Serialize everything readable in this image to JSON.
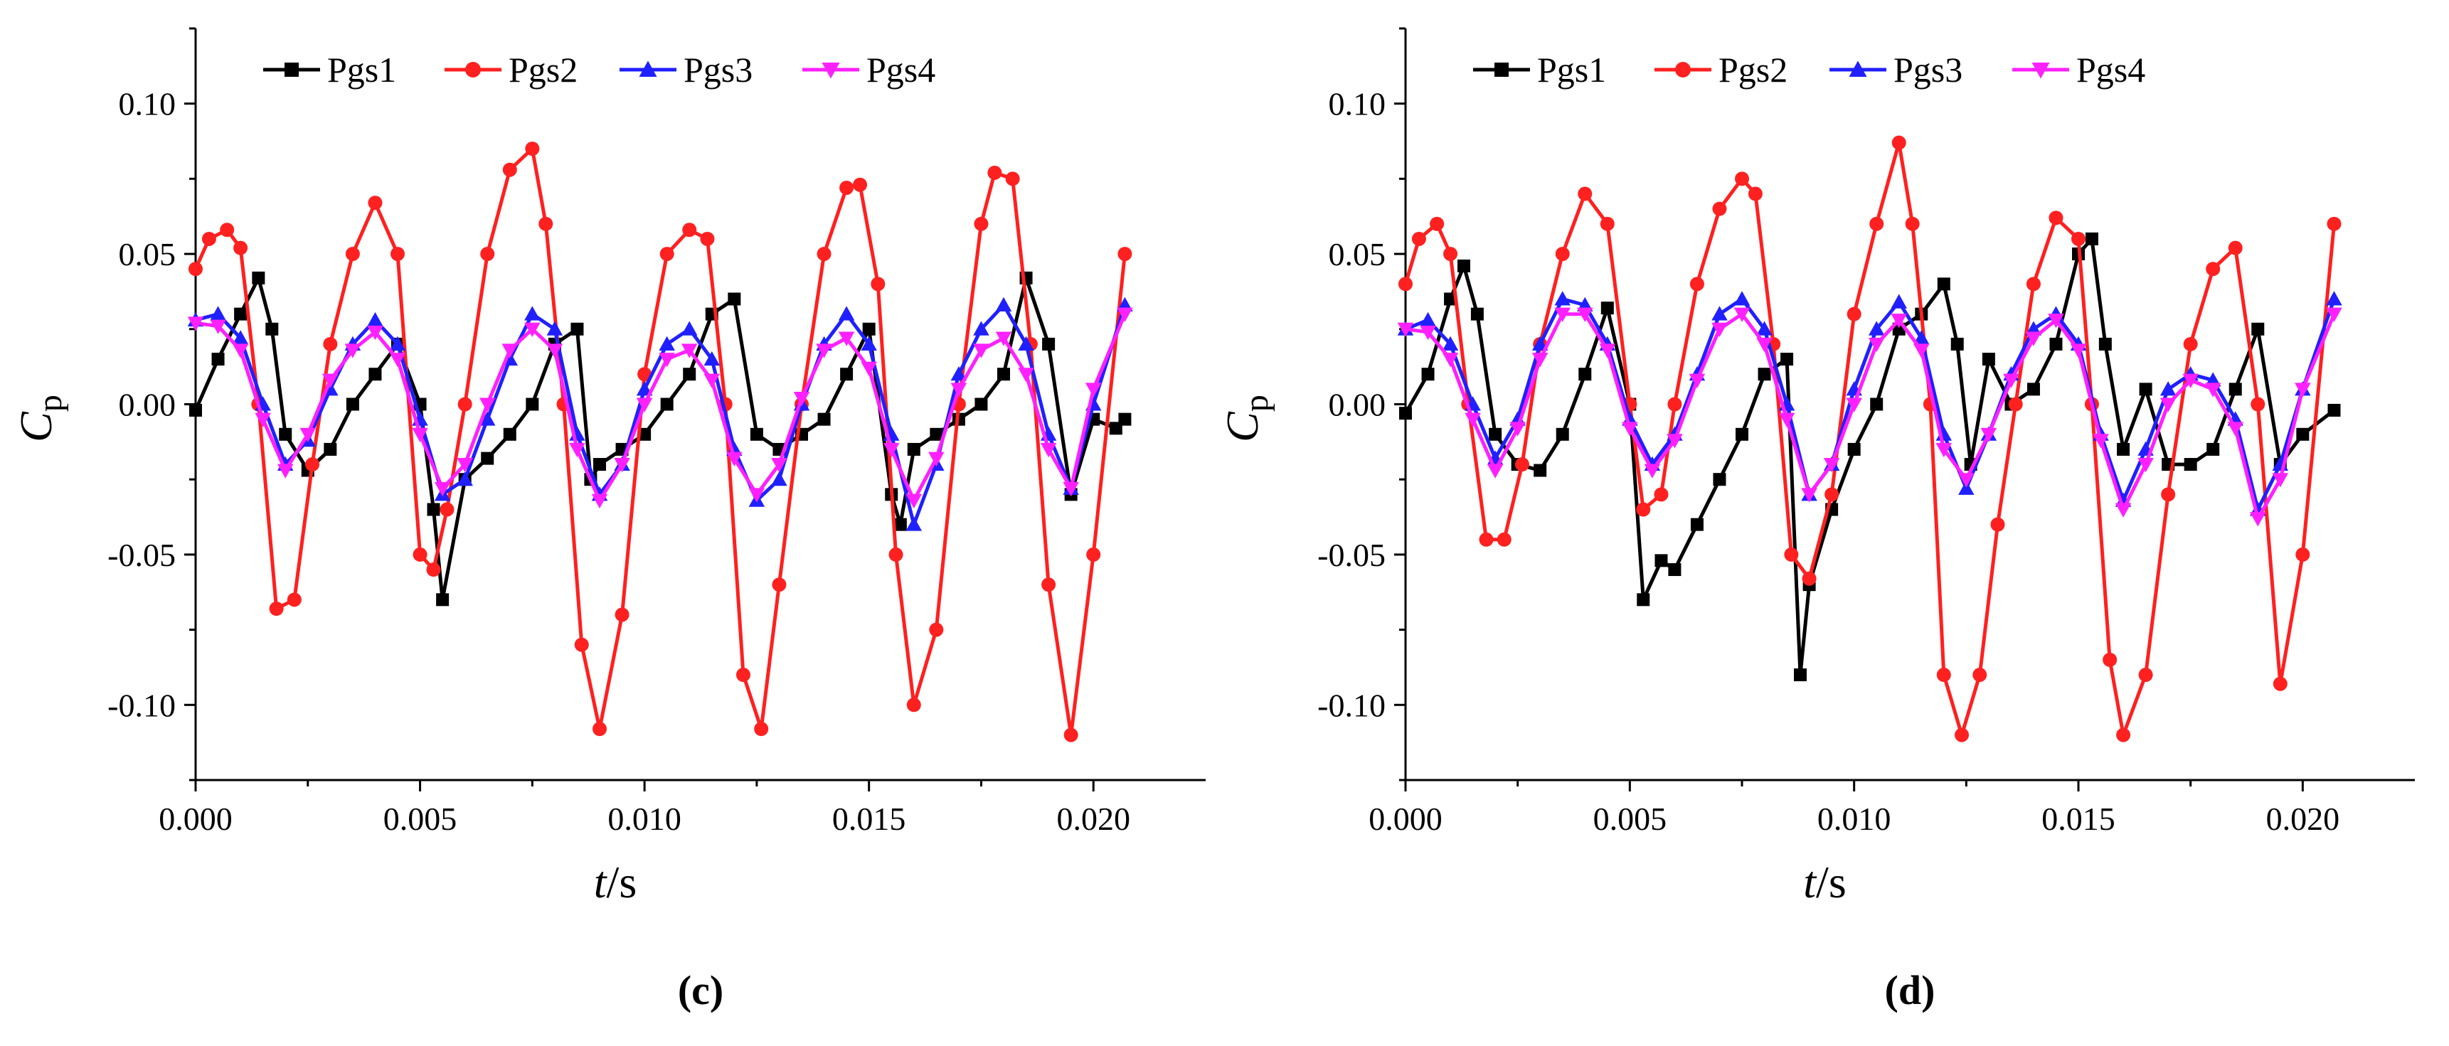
{
  "chart_data": [
    {
      "type": "line",
      "caption": "(c)",
      "xlabel": "t",
      "xlabel_unit": "/s",
      "ylabel": "C",
      "ylabel_sub": "p",
      "xlim": [
        0,
        0.0225
      ],
      "ylim": [
        -0.125,
        0.125
      ],
      "xticks": [
        0.0,
        0.005,
        0.01,
        0.015,
        0.02
      ],
      "xtick_labels": [
        "0.000",
        "0.005",
        "0.010",
        "0.015",
        "0.020"
      ],
      "yticks": [
        -0.1,
        -0.05,
        0.0,
        0.05,
        0.1
      ],
      "ytick_labels": [
        "-0.10",
        "-0.05",
        "0.00",
        "0.05",
        "0.10"
      ],
      "grid": false,
      "legend": "top",
      "series": [
        {
          "name": "Pgs1",
          "color": "#000000",
          "marker": "square",
          "x": [
            0,
            0.0005,
            0.001,
            0.0014,
            0.0017,
            0.002,
            0.0025,
            0.003,
            0.0035,
            0.004,
            0.0045,
            0.005,
            0.0053,
            0.0055,
            0.006,
            0.0065,
            0.007,
            0.0075,
            0.008,
            0.0085,
            0.0088,
            0.009,
            0.0095,
            0.01,
            0.0105,
            0.011,
            0.0115,
            0.012,
            0.0125,
            0.013,
            0.0135,
            0.014,
            0.0145,
            0.015,
            0.0155,
            0.0157,
            0.016,
            0.0165,
            0.017,
            0.0175,
            0.018,
            0.0185,
            0.019,
            0.0195,
            0.02,
            0.0205,
            0.0207
          ],
          "y": [
            -0.002,
            0.015,
            0.03,
            0.042,
            0.025,
            -0.01,
            -0.022,
            -0.015,
            0.0,
            0.01,
            0.02,
            0.0,
            -0.035,
            -0.065,
            -0.025,
            -0.018,
            -0.01,
            0.0,
            0.02,
            0.025,
            -0.025,
            -0.02,
            -0.015,
            -0.01,
            0.0,
            0.01,
            0.03,
            0.035,
            -0.01,
            -0.015,
            -0.01,
            -0.005,
            0.01,
            0.025,
            -0.03,
            -0.04,
            -0.015,
            -0.01,
            -0.005,
            0.0,
            0.01,
            0.042,
            0.02,
            -0.03,
            -0.005,
            -0.008,
            -0.005
          ]
        },
        {
          "name": "Pgs2",
          "color": "#ff2020",
          "marker": "circle",
          "x": [
            0,
            0.0003,
            0.0007,
            0.001,
            0.0014,
            0.0018,
            0.0022,
            0.0026,
            0.003,
            0.0035,
            0.004,
            0.0045,
            0.005,
            0.0053,
            0.0056,
            0.006,
            0.0065,
            0.007,
            0.0075,
            0.0078,
            0.0082,
            0.0086,
            0.009,
            0.0095,
            0.01,
            0.0105,
            0.011,
            0.0114,
            0.0118,
            0.0122,
            0.0126,
            0.013,
            0.0135,
            0.014,
            0.0145,
            0.0148,
            0.0152,
            0.0156,
            0.016,
            0.0165,
            0.017,
            0.0175,
            0.0178,
            0.0182,
            0.0186,
            0.019,
            0.0195,
            0.02,
            0.0207
          ],
          "y": [
            0.045,
            0.055,
            0.058,
            0.052,
            0.0,
            -0.068,
            -0.065,
            -0.02,
            0.02,
            0.05,
            0.067,
            0.05,
            -0.05,
            -0.055,
            -0.035,
            0.0,
            0.05,
            0.078,
            0.085,
            0.06,
            0.0,
            -0.08,
            -0.108,
            -0.07,
            0.01,
            0.05,
            0.058,
            0.055,
            0.0,
            -0.09,
            -0.108,
            -0.06,
            0.0,
            0.05,
            0.072,
            0.073,
            0.04,
            -0.05,
            -0.1,
            -0.075,
            0.0,
            0.06,
            0.077,
            0.075,
            0.02,
            -0.06,
            -0.11,
            -0.05,
            0.05
          ]
        },
        {
          "name": "Pgs3",
          "color": "#2020ff",
          "marker": "triangle-up",
          "x": [
            0,
            0.0005,
            0.001,
            0.0015,
            0.002,
            0.0025,
            0.003,
            0.0035,
            0.004,
            0.0045,
            0.005,
            0.0055,
            0.006,
            0.0065,
            0.007,
            0.0075,
            0.008,
            0.0085,
            0.009,
            0.0095,
            0.01,
            0.0105,
            0.011,
            0.0115,
            0.012,
            0.0125,
            0.013,
            0.0135,
            0.014,
            0.0145,
            0.015,
            0.0155,
            0.016,
            0.0165,
            0.017,
            0.0175,
            0.018,
            0.0185,
            0.019,
            0.0195,
            0.02,
            0.0207
          ],
          "y": [
            0.028,
            0.03,
            0.022,
            0.0,
            -0.02,
            -0.012,
            0.005,
            0.02,
            0.028,
            0.02,
            -0.005,
            -0.03,
            -0.025,
            -0.005,
            0.015,
            0.03,
            0.025,
            -0.01,
            -0.03,
            -0.02,
            0.005,
            0.02,
            0.025,
            0.015,
            -0.015,
            -0.032,
            -0.025,
            0.0,
            0.02,
            0.03,
            0.02,
            -0.01,
            -0.04,
            -0.02,
            0.01,
            0.025,
            0.033,
            0.02,
            -0.01,
            -0.028,
            0.0,
            0.033
          ]
        },
        {
          "name": "Pgs4",
          "color": "#ff20ff",
          "marker": "triangle-down",
          "x": [
            0,
            0.0005,
            0.001,
            0.0015,
            0.002,
            0.0025,
            0.003,
            0.0035,
            0.004,
            0.0045,
            0.005,
            0.0055,
            0.006,
            0.0065,
            0.007,
            0.0075,
            0.008,
            0.0085,
            0.009,
            0.0095,
            0.01,
            0.0105,
            0.011,
            0.0115,
            0.012,
            0.0125,
            0.013,
            0.0135,
            0.014,
            0.0145,
            0.015,
            0.0155,
            0.016,
            0.0165,
            0.017,
            0.0175,
            0.018,
            0.0185,
            0.019,
            0.0195,
            0.02,
            0.0207
          ],
          "y": [
            0.027,
            0.026,
            0.018,
            -0.005,
            -0.022,
            -0.01,
            0.008,
            0.018,
            0.024,
            0.015,
            -0.01,
            -0.028,
            -0.02,
            0.0,
            0.018,
            0.025,
            0.018,
            -0.015,
            -0.032,
            -0.02,
            0.0,
            0.015,
            0.018,
            0.008,
            -0.018,
            -0.03,
            -0.02,
            0.002,
            0.018,
            0.022,
            0.012,
            -0.015,
            -0.032,
            -0.018,
            0.005,
            0.018,
            0.022,
            0.01,
            -0.015,
            -0.028,
            0.005,
            0.03
          ]
        }
      ]
    },
    {
      "type": "line",
      "caption": "(d)",
      "xlabel": "t",
      "xlabel_unit": "/s",
      "ylabel": "C",
      "ylabel_sub": "p",
      "xlim": [
        0,
        0.0225
      ],
      "ylim": [
        -0.125,
        0.125
      ],
      "xticks": [
        0.0,
        0.005,
        0.01,
        0.015,
        0.02
      ],
      "xtick_labels": [
        "0.000",
        "0.005",
        "0.010",
        "0.015",
        "0.020"
      ],
      "yticks": [
        -0.1,
        -0.05,
        0.0,
        0.05,
        0.1
      ],
      "ytick_labels": [
        "-0.10",
        "-0.05",
        "0.00",
        "0.05",
        "0.10"
      ],
      "grid": false,
      "legend": "top",
      "series": [
        {
          "name": "Pgs1",
          "color": "#000000",
          "marker": "square",
          "x": [
            0,
            0.0005,
            0.001,
            0.0013,
            0.0016,
            0.002,
            0.0025,
            0.003,
            0.0035,
            0.004,
            0.0045,
            0.005,
            0.0053,
            0.0057,
            0.006,
            0.0065,
            0.007,
            0.0075,
            0.008,
            0.0085,
            0.0088,
            0.009,
            0.0095,
            0.01,
            0.0105,
            0.011,
            0.0115,
            0.012,
            0.0123,
            0.0126,
            0.013,
            0.0135,
            0.014,
            0.0145,
            0.015,
            0.0153,
            0.0156,
            0.016,
            0.0165,
            0.017,
            0.0175,
            0.018,
            0.0185,
            0.019,
            0.0195,
            0.02,
            0.0207
          ],
          "y": [
            -0.003,
            0.01,
            0.035,
            0.046,
            0.03,
            -0.01,
            -0.02,
            -0.022,
            -0.01,
            0.01,
            0.032,
            0.0,
            -0.065,
            -0.052,
            -0.055,
            -0.04,
            -0.025,
            -0.01,
            0.01,
            0.015,
            -0.09,
            -0.06,
            -0.035,
            -0.015,
            0.0,
            0.025,
            0.03,
            0.04,
            0.02,
            -0.02,
            0.015,
            0.0,
            0.005,
            0.02,
            0.05,
            0.055,
            0.02,
            -0.015,
            0.005,
            -0.02,
            -0.02,
            -0.015,
            0.005,
            0.025,
            -0.02,
            -0.01,
            -0.002
          ]
        },
        {
          "name": "Pgs2",
          "color": "#ff2020",
          "marker": "circle",
          "x": [
            0,
            0.0003,
            0.0007,
            0.001,
            0.0014,
            0.0018,
            0.0022,
            0.0026,
            0.003,
            0.0035,
            0.004,
            0.0045,
            0.005,
            0.0053,
            0.0057,
            0.006,
            0.0065,
            0.007,
            0.0075,
            0.0078,
            0.0082,
            0.0086,
            0.009,
            0.0095,
            0.01,
            0.0105,
            0.011,
            0.0113,
            0.0117,
            0.012,
            0.0124,
            0.0128,
            0.0132,
            0.0136,
            0.014,
            0.0145,
            0.015,
            0.0153,
            0.0157,
            0.016,
            0.0165,
            0.017,
            0.0175,
            0.018,
            0.0185,
            0.019,
            0.0195,
            0.02,
            0.0207
          ],
          "y": [
            0.04,
            0.055,
            0.06,
            0.05,
            0.0,
            -0.045,
            -0.045,
            -0.02,
            0.02,
            0.05,
            0.07,
            0.06,
            0.0,
            -0.035,
            -0.03,
            0.0,
            0.04,
            0.065,
            0.075,
            0.07,
            0.02,
            -0.05,
            -0.058,
            -0.03,
            0.03,
            0.06,
            0.087,
            0.06,
            0.0,
            -0.09,
            -0.11,
            -0.09,
            -0.04,
            0.0,
            0.04,
            0.062,
            0.055,
            0.0,
            -0.085,
            -0.11,
            -0.09,
            -0.03,
            0.02,
            0.045,
            0.052,
            0.0,
            -0.093,
            -0.05,
            0.06
          ]
        },
        {
          "name": "Pgs3",
          "color": "#2020ff",
          "marker": "triangle-up",
          "x": [
            0,
            0.0005,
            0.001,
            0.0015,
            0.002,
            0.0025,
            0.003,
            0.0035,
            0.004,
            0.0045,
            0.005,
            0.0055,
            0.006,
            0.0065,
            0.007,
            0.0075,
            0.008,
            0.0085,
            0.009,
            0.0095,
            0.01,
            0.0105,
            0.011,
            0.0115,
            0.012,
            0.0125,
            0.013,
            0.0135,
            0.014,
            0.0145,
            0.015,
            0.0155,
            0.016,
            0.0165,
            0.017,
            0.0175,
            0.018,
            0.0185,
            0.019,
            0.0195,
            0.02,
            0.0207
          ],
          "y": [
            0.025,
            0.028,
            0.02,
            0.0,
            -0.018,
            -0.005,
            0.02,
            0.035,
            0.033,
            0.02,
            -0.005,
            -0.02,
            -0.01,
            0.01,
            0.03,
            0.035,
            0.025,
            0.0,
            -0.03,
            -0.02,
            0.005,
            0.025,
            0.034,
            0.022,
            -0.01,
            -0.028,
            -0.01,
            0.01,
            0.025,
            0.03,
            0.02,
            -0.01,
            -0.032,
            -0.015,
            0.005,
            0.01,
            0.008,
            -0.005,
            -0.035,
            -0.02,
            0.005,
            0.035
          ]
        },
        {
          "name": "Pgs4",
          "color": "#ff20ff",
          "marker": "triangle-down",
          "x": [
            0,
            0.0005,
            0.001,
            0.0015,
            0.002,
            0.0025,
            0.003,
            0.0035,
            0.004,
            0.0045,
            0.005,
            0.0055,
            0.006,
            0.0065,
            0.007,
            0.0075,
            0.008,
            0.0085,
            0.009,
            0.0095,
            0.01,
            0.0105,
            0.011,
            0.0115,
            0.012,
            0.0125,
            0.013,
            0.0135,
            0.014,
            0.0145,
            0.015,
            0.0155,
            0.016,
            0.0165,
            0.017,
            0.0175,
            0.018,
            0.0185,
            0.019,
            0.0195,
            0.02,
            0.0207
          ],
          "y": [
            0.025,
            0.024,
            0.015,
            -0.005,
            -0.022,
            -0.008,
            0.015,
            0.03,
            0.03,
            0.018,
            -0.008,
            -0.022,
            -0.012,
            0.008,
            0.025,
            0.03,
            0.02,
            -0.005,
            -0.03,
            -0.02,
            0.0,
            0.02,
            0.028,
            0.018,
            -0.015,
            -0.025,
            -0.01,
            0.008,
            0.022,
            0.028,
            0.018,
            -0.012,
            -0.035,
            -0.02,
            0.0,
            0.008,
            0.005,
            -0.008,
            -0.038,
            -0.025,
            0.005,
            0.03
          ]
        }
      ]
    }
  ]
}
